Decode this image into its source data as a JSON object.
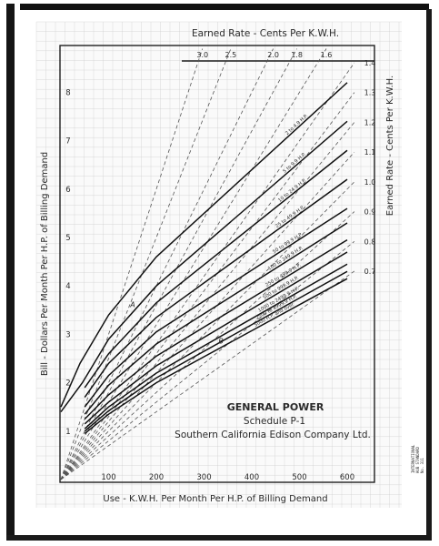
{
  "chart_data": {
    "type": "line",
    "title": "GENERAL POWER",
    "subtitle": "Schedule P-1",
    "company": "Southern California Edison Company Ltd.",
    "top_axis_label": "Earned Rate - Cents Per K.W.H.",
    "right_axis_label": "Earned Rate - Cents Per K.W.H.",
    "xlabel": "Use - K.W.H. Per Month Per H.P. of Billing Demand",
    "ylabel": "Bill - Dollars Per Month Per H.P. of Billing Demand",
    "x_ticks": [
      100,
      200,
      300,
      400,
      500,
      600
    ],
    "y_ticks": [
      1,
      2,
      3,
      4,
      5,
      6,
      7,
      8
    ],
    "xlim": [
      0,
      640
    ],
    "ylim": [
      0,
      9.2
    ],
    "grid": true,
    "rate_lines": [
      {
        "label": "3.0",
        "cents": 3.0
      },
      {
        "label": "2.5",
        "cents": 2.5
      },
      {
        "label": "2.0",
        "cents": 2.0
      },
      {
        "label": "1.8",
        "cents": 1.8
      },
      {
        "label": "1.6",
        "cents": 1.6
      },
      {
        "label": "1.4",
        "cents": 1.4
      },
      {
        "label": "1.3",
        "cents": 1.3
      },
      {
        "label": "1.2",
        "cents": 1.2
      },
      {
        "label": "1.1",
        "cents": 1.1
      },
      {
        "label": "1.0",
        "cents": 1.0
      },
      {
        "label": "0.9",
        "cents": 0.9
      },
      {
        "label": "0.8",
        "cents": 0.8
      },
      {
        "label": "0.7",
        "cents": 0.7
      }
    ],
    "series": [
      {
        "name": "2 to 4.9 H.P.",
        "x": [
          0,
          40,
          100,
          200,
          600
        ],
        "y": [
          1.5,
          2.4,
          3.4,
          4.6,
          8.2
        ]
      },
      {
        "name": "5 to 9.9 H.P.",
        "x": [
          0,
          45,
          100,
          200,
          600
        ],
        "y": [
          1.4,
          2.0,
          2.9,
          4.0,
          7.4
        ]
      },
      {
        "name": "10 to 24.9 H.P.",
        "x": [
          50,
          100,
          200,
          600
        ],
        "y": [
          1.9,
          2.6,
          3.65,
          6.8
        ]
      },
      {
        "name": "25 to 49.9 H.P.",
        "x": [
          50,
          100,
          200,
          600
        ],
        "y": [
          1.7,
          2.4,
          3.35,
          6.2
        ]
      },
      {
        "name": "50 to 99.9 H.P.",
        "x": [
          50,
          100,
          200,
          600
        ],
        "y": [
          1.5,
          2.15,
          3.05,
          5.6
        ]
      },
      {
        "name": "100 to 249.9 H.P.",
        "x": [
          50,
          100,
          200,
          600
        ],
        "y": [
          1.35,
          1.95,
          2.8,
          5.3
        ]
      },
      {
        "name": "250 to 499.9 H.P.",
        "x": [
          50,
          100,
          200,
          600
        ],
        "y": [
          1.25,
          1.75,
          2.55,
          4.95
        ]
      },
      {
        "name": "500 to 999.9 H.P.",
        "x": [
          50,
          100,
          200,
          600
        ],
        "y": [
          1.15,
          1.6,
          2.35,
          4.7
        ]
      },
      {
        "name": "1000 to 2499.9 H.P.",
        "x": [
          50,
          100,
          200,
          600
        ],
        "y": [
          1.05,
          1.5,
          2.2,
          4.45
        ]
      },
      {
        "name": "2500 to 4999.9 H.P.",
        "x": [
          50,
          100,
          200,
          600
        ],
        "y": [
          1.0,
          1.42,
          2.1,
          4.3
        ]
      },
      {
        "name": "5000 H.P. and over",
        "x": [
          50,
          100,
          200,
          600
        ],
        "y": [
          0.95,
          1.35,
          2.0,
          4.15
        ]
      }
    ],
    "annotations": [
      {
        "text": "A",
        "x": 200,
        "y": 3.6
      },
      {
        "text": "B",
        "x": 385,
        "y": 2.85
      }
    ],
    "margin_note": [
      "INTERNATIONAL",
      "HUB STANDARD",
      "No. 311"
    ]
  }
}
